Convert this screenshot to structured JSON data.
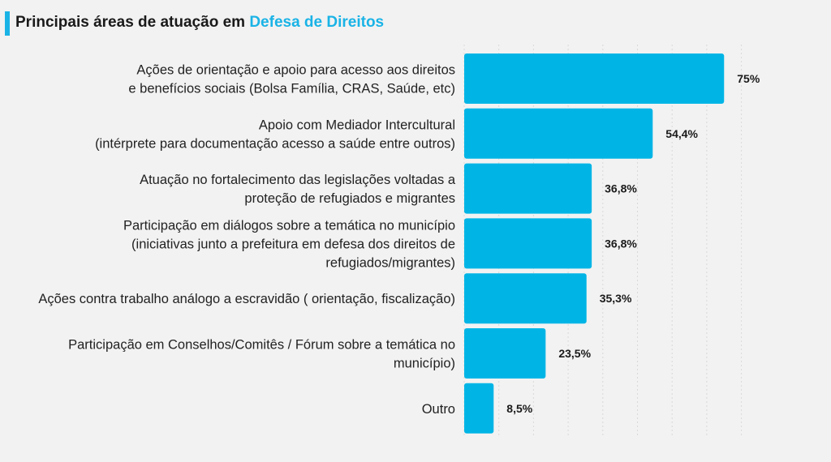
{
  "title": {
    "prefix": "Principais áreas de atuação em",
    "highlight": "Defesa de Direitos"
  },
  "colors": {
    "bar": "#00b5e6",
    "accent": "#1ab3e6",
    "grid": "#d9d9d9",
    "background": "#f2f2f2"
  },
  "chart_data": {
    "type": "bar",
    "orientation": "horizontal",
    "categories": [
      [
        "Ações de orientação e apoio para acesso aos direitos",
        "e benefícios sociais (Bolsa Família, CRAS, Saúde, etc)"
      ],
      [
        "Apoio com Mediador Intercultural",
        "(intérprete para documentação acesso a saúde entre outros)"
      ],
      [
        "Atuação no fortalecimento das legislações voltadas a",
        "proteção de refugiados e migrantes"
      ],
      [
        "Participação em diálogos sobre a temática no município",
        "(iniciativas junto a prefeitura em defesa dos direitos de",
        "refugiados/migrantes)"
      ],
      [
        "Ações contra trabalho análogo a escravidão ( orientação, fiscalização)"
      ],
      [
        "Participação em Conselhos/Comitês / Fórum sobre a temática no",
        "município)"
      ],
      [
        "Outro"
      ]
    ],
    "values": [
      75,
      54.4,
      36.8,
      36.8,
      35.3,
      23.5,
      8.5
    ],
    "value_labels": [
      "75%",
      "54,4%",
      "36,8%",
      "36,8%",
      "35,3%",
      "23,5%",
      "8,5%"
    ],
    "xlim": [
      0,
      85
    ],
    "grid": true
  }
}
